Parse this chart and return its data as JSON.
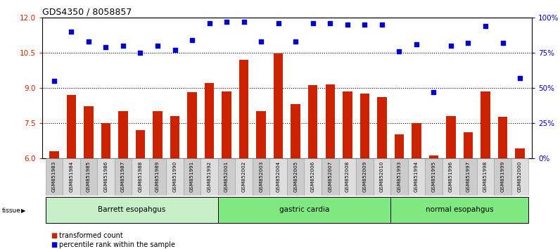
{
  "title": "GDS4350 / 8058857",
  "samples": [
    "GSM851983",
    "GSM851984",
    "GSM851985",
    "GSM851986",
    "GSM851987",
    "GSM851988",
    "GSM851989",
    "GSM851990",
    "GSM851991",
    "GSM851992",
    "GSM852001",
    "GSM852002",
    "GSM852003",
    "GSM852004",
    "GSM852005",
    "GSM852006",
    "GSM852007",
    "GSM852008",
    "GSM852009",
    "GSM852010",
    "GSM851993",
    "GSM851994",
    "GSM851995",
    "GSM851996",
    "GSM851997",
    "GSM851998",
    "GSM851999",
    "GSM852000"
  ],
  "red_values": [
    6.3,
    8.7,
    8.2,
    7.5,
    8.0,
    7.2,
    8.0,
    7.8,
    8.8,
    9.2,
    8.85,
    10.2,
    8.0,
    10.45,
    8.3,
    9.1,
    9.15,
    8.85,
    8.75,
    8.6,
    7.0,
    7.5,
    6.1,
    7.8,
    7.1,
    8.85,
    7.75,
    6.4
  ],
  "blue_values": [
    55,
    90,
    83,
    79,
    80,
    75,
    80,
    77,
    84,
    96,
    97,
    97,
    83,
    96,
    83,
    96,
    96,
    95,
    95,
    95,
    76,
    81,
    47,
    80,
    82,
    94,
    82,
    57
  ],
  "groups": [
    {
      "label": "Barrett esopahgus",
      "start": 0,
      "end": 10,
      "color": "#c8f0c8"
    },
    {
      "label": "gastric cardia",
      "start": 10,
      "end": 20,
      "color": "#80e880"
    },
    {
      "label": "normal esopahgus",
      "start": 20,
      "end": 28,
      "color": "#80e880"
    }
  ],
  "ylim_left": [
    6,
    12
  ],
  "ylim_right": [
    0,
    100
  ],
  "yticks_left": [
    6,
    7.5,
    9,
    10.5,
    12
  ],
  "yticks_right": [
    0,
    25,
    50,
    75,
    100
  ],
  "bar_color": "#cc2200",
  "dot_color": "#0000cc",
  "legend_labels": [
    "transformed count",
    "percentile rank within the sample"
  ],
  "group_colors": [
    "#c8f0c8",
    "#80e880",
    "#80e880"
  ]
}
